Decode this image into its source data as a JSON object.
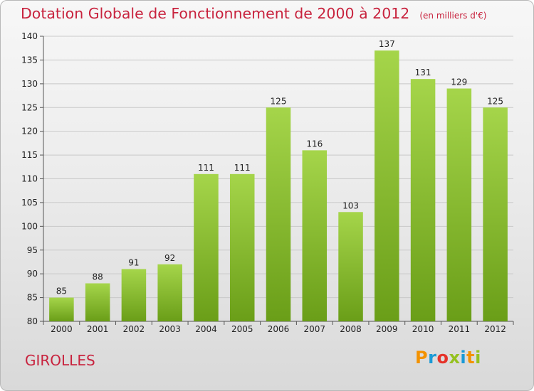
{
  "chart_title": "Dotation Globale de Fonctionnement de 2000 à 2012",
  "chart_unit": "(en milliers d'€)",
  "commune_name": "GIROLLES",
  "logo_text": "Proxiti",
  "logo_colors": [
    "#f39200",
    "#1a9ad6",
    "#e6332a",
    "#95c11f",
    "#1a9ad6",
    "#f39200",
    "#95c11f"
  ],
  "colors": {
    "title": "#c8233e",
    "bar_top": "#a5d54a",
    "bar_bottom": "#6a9e18",
    "grid": "#c9c9c9"
  },
  "chart_data": {
    "type": "bar",
    "title": "Dotation Globale de Fonctionnement de 2000 à 2012",
    "subtitle": "(en milliers d'€)",
    "xlabel": "",
    "ylabel": "",
    "categories": [
      "2000",
      "2001",
      "2002",
      "2003",
      "2004",
      "2005",
      "2006",
      "2007",
      "2008",
      "2009",
      "2010",
      "2011",
      "2012"
    ],
    "values": [
      85,
      88,
      91,
      92,
      111,
      111,
      125,
      116,
      103,
      137,
      131,
      129,
      125
    ],
    "ylim": [
      80,
      140
    ],
    "yticks": [
      80,
      85,
      90,
      95,
      100,
      105,
      110,
      115,
      120,
      125,
      130,
      135,
      140
    ],
    "grid": true,
    "legend": "none"
  }
}
